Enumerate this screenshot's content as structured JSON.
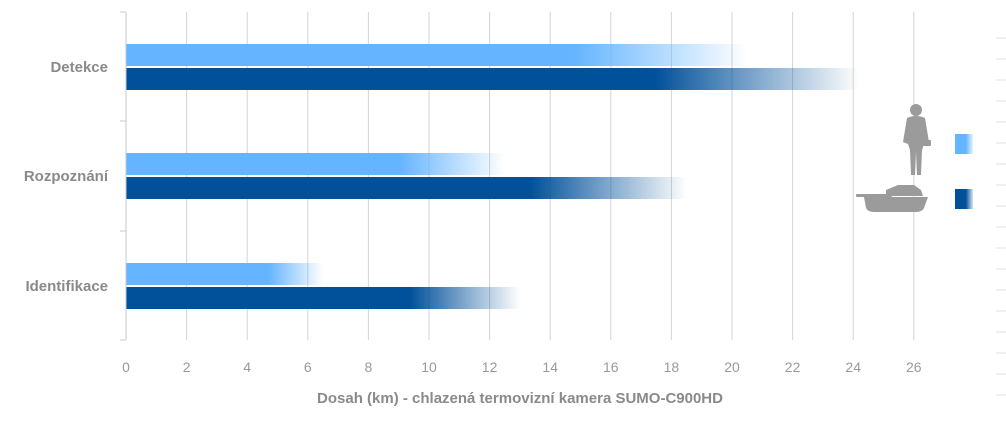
{
  "chart_data": {
    "type": "bar",
    "orientation": "horizontal",
    "categories": [
      "Detekce",
      "Rozpoznání",
      "Identifikace"
    ],
    "series": [
      {
        "icon": "soldier-icon",
        "color": "#64b4ff",
        "values": [
          20.5,
          12.5,
          6.5
        ]
      },
      {
        "icon": "tank-icon",
        "color": "#00509a",
        "values": [
          24.2,
          18.5,
          13
        ]
      }
    ],
    "xlabel": "Dosah (km) - chlazená termovizní kamera SUMO-C900HD",
    "xticks": [
      "0",
      "2",
      "4",
      "6",
      "8",
      "10",
      "12",
      "14",
      "16",
      "18",
      "20",
      "22",
      "24",
      "26"
    ],
    "xlim": [
      0,
      26
    ],
    "grid": true,
    "legend": "right"
  }
}
